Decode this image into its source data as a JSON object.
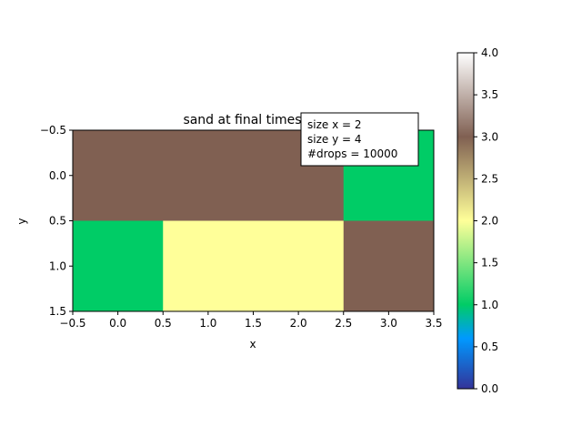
{
  "chart_data": {
    "type": "heatmap",
    "title": "sand at final timestep",
    "xlabel": "x",
    "ylabel": "y",
    "xlim": [
      -0.5,
      3.5
    ],
    "ylim": [
      1.5,
      -0.5
    ],
    "xticks": [
      "-0.5",
      "0.0",
      "0.5",
      "1.0",
      "1.5",
      "2.0",
      "2.5",
      "3.0",
      "3.5"
    ],
    "yticks": [
      "-0.5",
      "0.0",
      "0.5",
      "1.0",
      "1.5"
    ],
    "grid_values": [
      [
        3,
        3,
        3,
        1
      ],
      [
        1,
        2,
        2,
        3
      ]
    ],
    "colormap": "terrain",
    "colorbar": {
      "min": 0.0,
      "max": 4.0,
      "ticks": [
        "0.0",
        "0.5",
        "1.0",
        "1.5",
        "2.0",
        "2.5",
        "3.0",
        "3.5",
        "4.0"
      ],
      "stops": [
        {
          "value": 0.0,
          "color": "#333399"
        },
        {
          "value": 0.6,
          "color": "#0099ff"
        },
        {
          "value": 1.0,
          "color": "#00cc66"
        },
        {
          "value": 2.0,
          "color": "#ffff99"
        },
        {
          "value": 3.0,
          "color": "#806052"
        },
        {
          "value": 4.0,
          "color": "#ffffff"
        }
      ]
    },
    "annotation": [
      "size x = 2",
      "size y = 4",
      "#drops = 10000"
    ],
    "grid": false
  }
}
